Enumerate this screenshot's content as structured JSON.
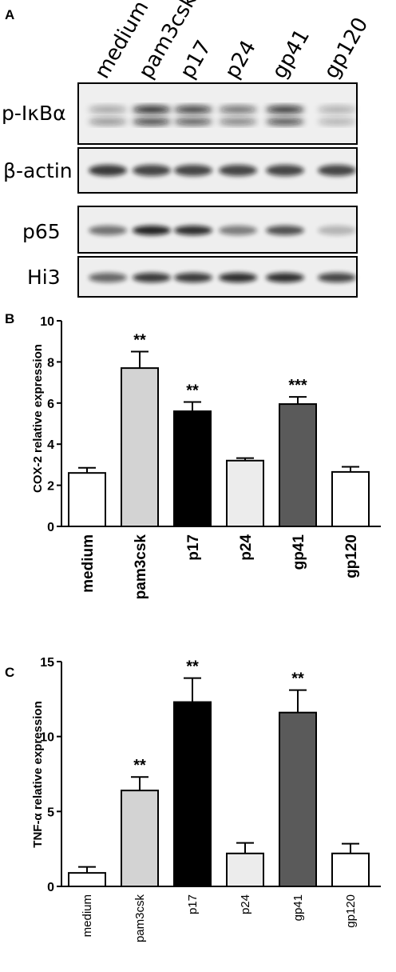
{
  "figure": {
    "panel_labels": [
      "A",
      "B",
      "C"
    ],
    "lanes": [
      "medium",
      "pam3csk",
      "p17",
      "p24",
      "gp41",
      "gp120"
    ],
    "blots": [
      "p-IκBα",
      "β-actin",
      "p65",
      "Hi3"
    ]
  },
  "chart_data": [
    {
      "type": "bar",
      "panel": "B",
      "ylabel": "COX-2 relative expression",
      "categories": [
        "medium",
        "pam3csk",
        "p17",
        "p24",
        "gp41",
        "gp120"
      ],
      "values": [
        2.6,
        7.7,
        5.6,
        3.2,
        5.95,
        2.65
      ],
      "errors": [
        0.25,
        0.8,
        0.45,
        0.12,
        0.35,
        0.25
      ],
      "significance": [
        "",
        "**",
        "**",
        "",
        "***",
        ""
      ],
      "colors": [
        "#ffffff",
        "#d3d3d3",
        "#000000",
        "#ececec",
        "#5a5a5a",
        "#ffffff"
      ],
      "ylim": [
        0,
        10
      ],
      "yticks": [
        "0",
        "2",
        "4",
        "6",
        "8",
        "10"
      ],
      "grid": false
    },
    {
      "type": "bar",
      "panel": "C",
      "ylabel": "TNF-α relative expression",
      "categories": [
        "medium",
        "pam3csk",
        "p17",
        "p24",
        "gp41",
        "gp120"
      ],
      "values": [
        0.9,
        6.4,
        12.3,
        2.2,
        11.6,
        2.2
      ],
      "errors": [
        0.4,
        0.9,
        1.6,
        0.7,
        1.5,
        0.65
      ],
      "significance": [
        "",
        "**",
        "**",
        "",
        "**",
        ""
      ],
      "colors": [
        "#ffffff",
        "#d3d3d3",
        "#000000",
        "#ececec",
        "#5a5a5a",
        "#ffffff"
      ],
      "ylim": [
        0,
        15
      ],
      "yticks": [
        "0",
        "5",
        "10",
        "15"
      ],
      "grid": false
    }
  ]
}
